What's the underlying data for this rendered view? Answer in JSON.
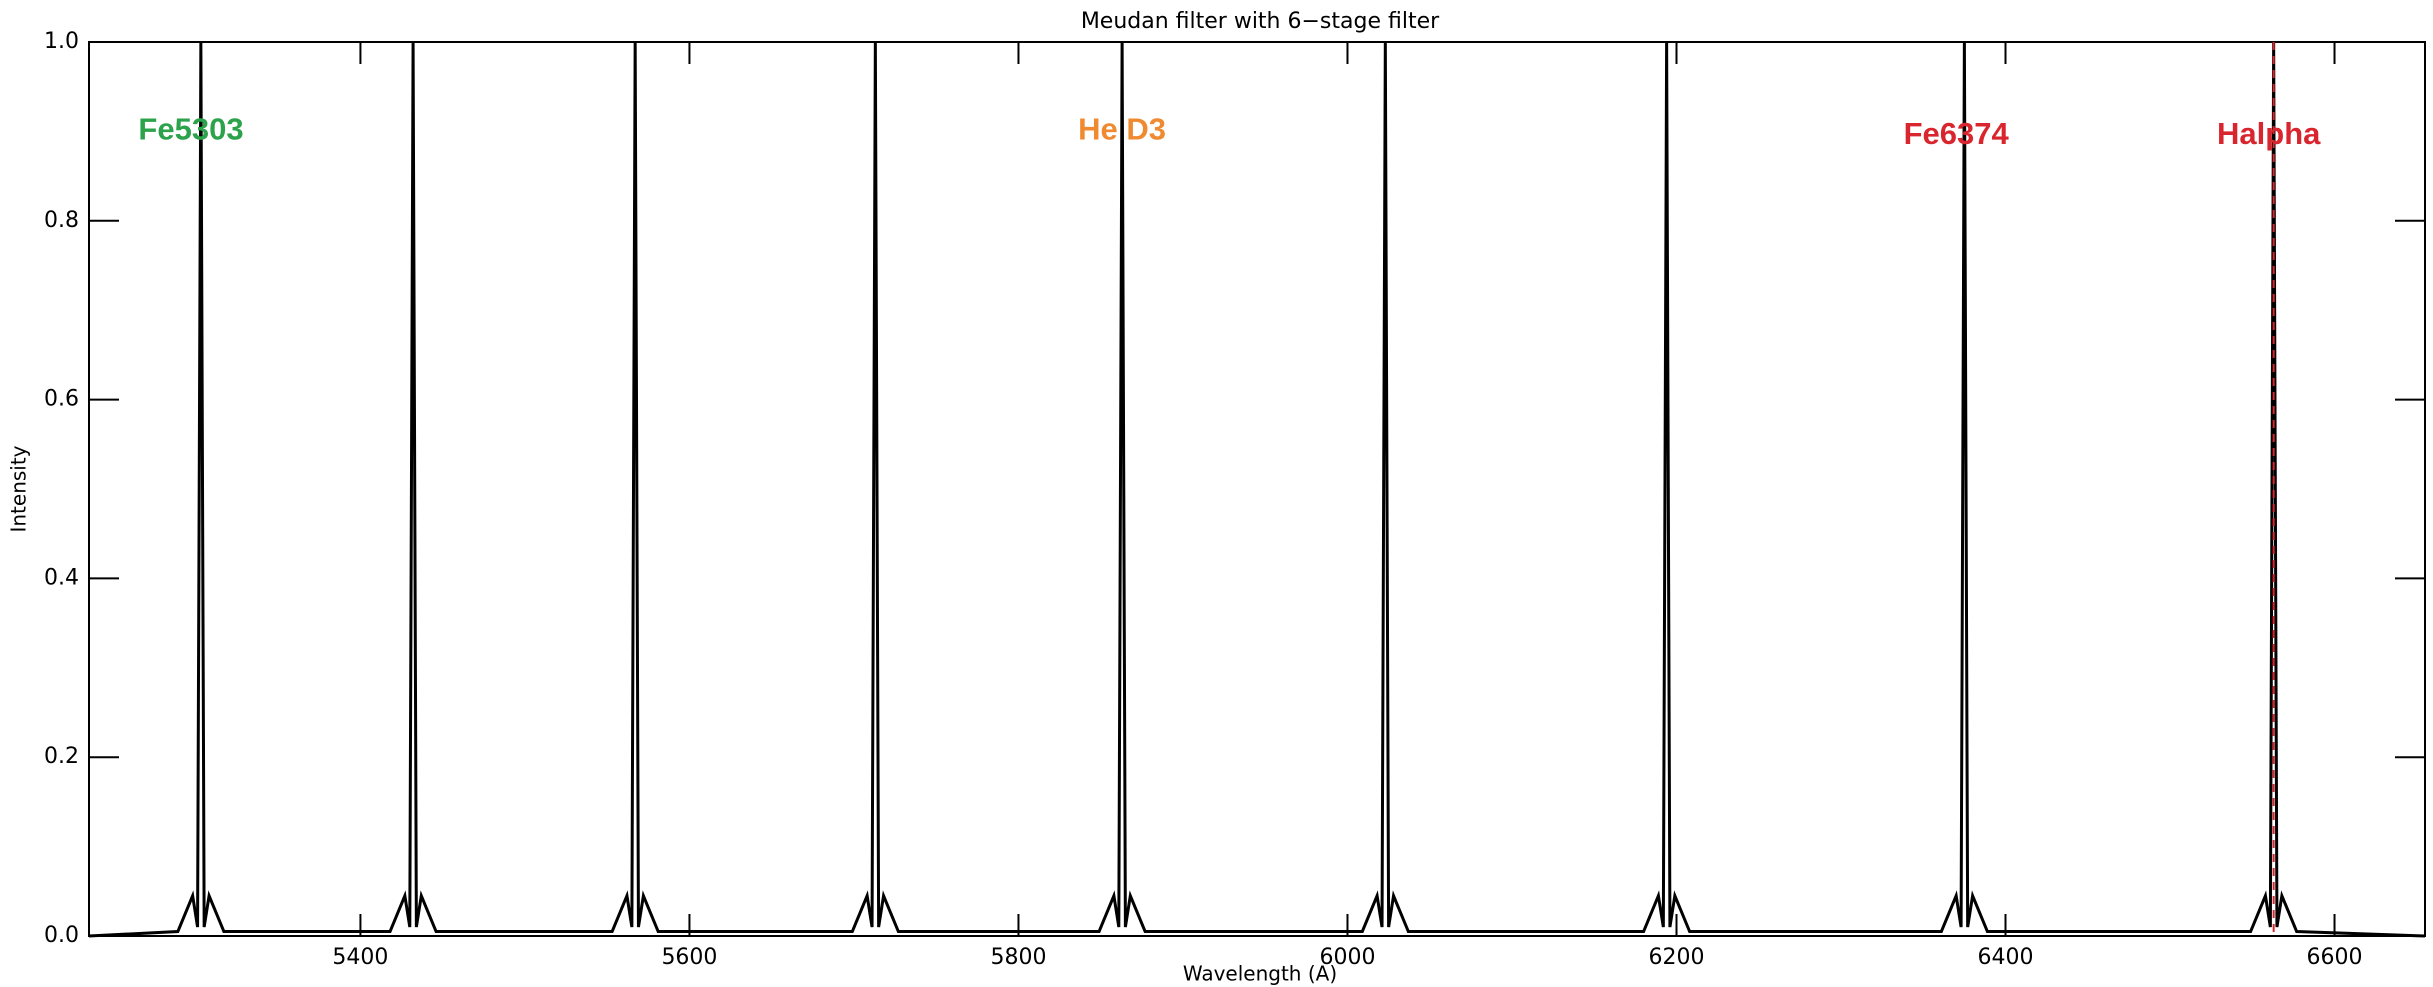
{
  "chart_data": {
    "type": "line",
    "title": "Meudan filter with 6−stage filter",
    "x_label": "Wavelength (A)",
    "y_label": "Intensity",
    "xlim": [
      5235,
      6655
    ],
    "xticks": [
      5400,
      5600,
      5800,
      6000,
      6200,
      6400,
      6600
    ],
    "ylim": [
      0,
      1
    ],
    "yticks": [
      {
        "value": 0,
        "label": "0.0"
      },
      0.2,
      0.4,
      0.6,
      0.8,
      {
        "value": 1,
        "label": "1.0"
      }
    ],
    "series": [
      {
        "color": "#000000",
        "x": [
          5235,
          5289,
          5298,
          5301,
          5303,
          5305,
          5308,
          5317,
          5418,
          5427,
          5430,
          5432,
          5434,
          5437,
          5446,
          5553,
          5562,
          5565,
          5567,
          5569,
          5572,
          5581,
          5699,
          5708,
          5711,
          5713,
          5715,
          5718,
          5727,
          5849,
          5858,
          5861,
          5863,
          5865,
          5868,
          5877,
          6009,
          6018,
          6021,
          6023,
          6025,
          6028,
          6037,
          6180,
          6189,
          6192,
          6194,
          6196,
          6199,
          6208,
          6361,
          6370,
          6373,
          6375,
          6377,
          6380,
          6389,
          6549,
          6558,
          6561,
          6563,
          6565,
          6568,
          6577,
          6655
        ],
        "values": [
          0,
          0.005,
          0.045,
          0.01,
          1.0,
          0.01,
          0.045,
          0.005,
          0.005,
          0.045,
          0.01,
          1.0,
          0.01,
          0.045,
          0.005,
          0.005,
          0.045,
          0.01,
          1.0,
          0.01,
          0.045,
          0.005,
          0.005,
          0.045,
          0.01,
          1.0,
          0.01,
          0.045,
          0.005,
          0.005,
          0.045,
          0.01,
          1.0,
          0.01,
          0.045,
          0.005,
          0.005,
          0.045,
          0.01,
          1.0,
          0.01,
          0.045,
          0.005,
          0.005,
          0.045,
          0.01,
          1.0,
          0.01,
          0.045,
          0.005,
          0.005,
          0.045,
          0.01,
          1.0,
          0.01,
          0.045,
          0.005,
          0.005,
          0.045,
          0.01,
          1.0,
          0.01,
          0.045,
          0.005,
          0
        ]
      }
    ],
    "vlines": [
      {
        "x": 6563,
        "color": "#d9262e",
        "style": "dashed"
      }
    ],
    "annotations": [
      {
        "text": "Fe5303",
        "x": 5297,
        "y": 0.9,
        "color": "#2ca24a"
      },
      {
        "text": "He D3",
        "x": 5863,
        "y": 0.9,
        "color": "#f08a30"
      },
      {
        "text": "Fe6374",
        "x": 6370,
        "y": 0.895,
        "color": "#d9262e"
      },
      {
        "text": "Halpha",
        "x": 6560,
        "y": 0.895,
        "color": "#d9262e"
      }
    ]
  }
}
